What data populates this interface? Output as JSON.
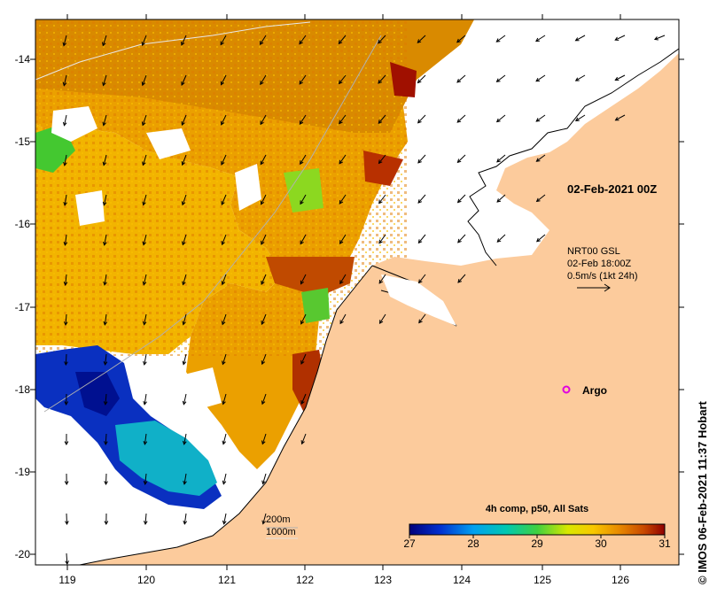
{
  "map": {
    "y_axis_labels": [
      "-14",
      "-15",
      "-16",
      "-17",
      "-18",
      "-19",
      "-20"
    ],
    "x_axis_labels": [
      "119",
      "120",
      "121",
      "122",
      "123",
      "124",
      "125",
      "126"
    ],
    "date_label": "02-Feb-2021 00Z",
    "wind_legend": {
      "line1": "NRT00 GSL",
      "line2": "02-Feb 18:00Z",
      "line3": "0.5m/s (1kt 24h)"
    },
    "argo_label": "Argo",
    "scale": {
      "depth1": "200m",
      "depth2": "1000m"
    },
    "colorbar": {
      "title": "4h comp, p50, All Sats",
      "ticks": [
        "27",
        "28",
        "29",
        "30",
        "31"
      ]
    },
    "credit": "IMOS 06-Feb-2021 11:37 Hobart",
    "credit_symbol": "©",
    "colors": {
      "land": "#fccb9c",
      "argo": "#e000e0",
      "sst_cold": "#000080",
      "sst_mid": "#00c000",
      "sst_warm": "#e8a000",
      "sst_hot": "#a00000"
    }
  }
}
